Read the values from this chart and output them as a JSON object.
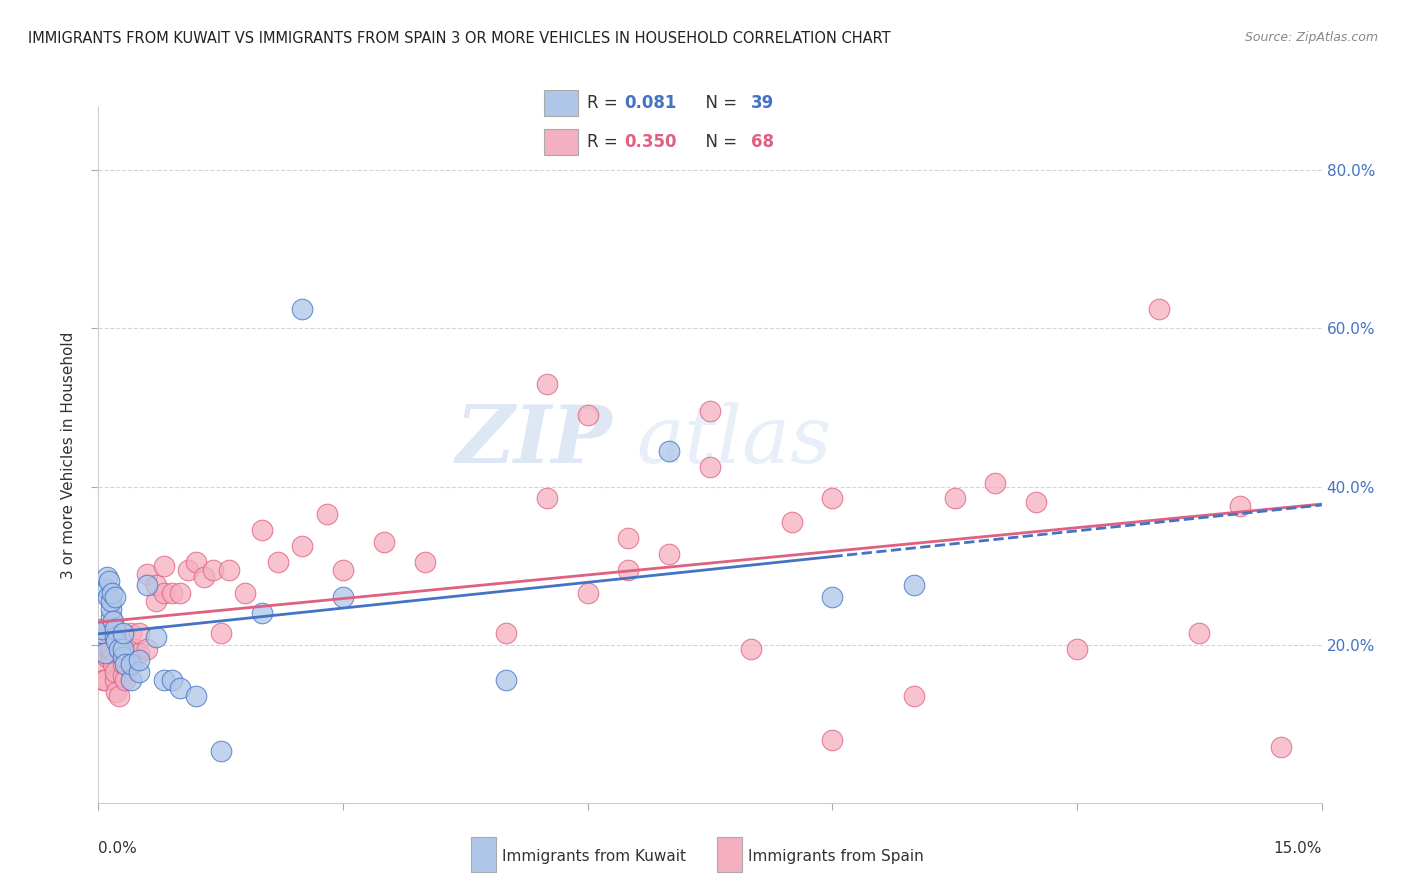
{
  "title": "IMMIGRANTS FROM KUWAIT VS IMMIGRANTS FROM SPAIN 3 OR MORE VEHICLES IN HOUSEHOLD CORRELATION CHART",
  "source": "Source: ZipAtlas.com",
  "ylabel": "3 or more Vehicles in Household",
  "right_yticks": [
    0.2,
    0.4,
    0.6,
    0.8
  ],
  "right_yticklabels": [
    "20.0%",
    "40.0%",
    "60.0%",
    "80.0%"
  ],
  "xlim": [
    0.0,
    0.15
  ],
  "ylim": [
    0.0,
    0.88
  ],
  "kuwait_R": 0.081,
  "kuwait_N": 39,
  "spain_R": 0.35,
  "spain_N": 68,
  "kuwait_color": "#aec6e8",
  "spain_color": "#f4afc0",
  "kuwait_line_color": "#4472c4",
  "spain_line_color": "#e06080",
  "legend_label_kuwait": "Immigrants from Kuwait",
  "legend_label_spain": "Immigrants from Spain",
  "watermark_zip": "ZIP",
  "watermark_atlas": "atlas",
  "kuwait_x": [
    0.0005,
    0.0005,
    0.0008,
    0.001,
    0.001,
    0.0012,
    0.0013,
    0.0015,
    0.0015,
    0.0016,
    0.0017,
    0.0018,
    0.002,
    0.002,
    0.002,
    0.0022,
    0.0025,
    0.003,
    0.003,
    0.003,
    0.0032,
    0.004,
    0.004,
    0.005,
    0.005,
    0.006,
    0.007,
    0.008,
    0.009,
    0.01,
    0.012,
    0.015,
    0.02,
    0.025,
    0.03,
    0.05,
    0.07,
    0.09,
    0.1
  ],
  "kuwait_y": [
    0.215,
    0.22,
    0.19,
    0.27,
    0.285,
    0.26,
    0.28,
    0.235,
    0.245,
    0.255,
    0.265,
    0.23,
    0.21,
    0.22,
    0.26,
    0.205,
    0.195,
    0.185,
    0.195,
    0.215,
    0.175,
    0.155,
    0.175,
    0.165,
    0.18,
    0.275,
    0.21,
    0.155,
    0.155,
    0.145,
    0.135,
    0.065,
    0.24,
    0.625,
    0.26,
    0.155,
    0.445,
    0.26,
    0.275
  ],
  "spain_x": [
    0.0005,
    0.0006,
    0.0008,
    0.001,
    0.001,
    0.0012,
    0.0013,
    0.0015,
    0.0016,
    0.0018,
    0.002,
    0.002,
    0.0022,
    0.0025,
    0.003,
    0.003,
    0.003,
    0.0032,
    0.004,
    0.004,
    0.0045,
    0.005,
    0.005,
    0.006,
    0.006,
    0.007,
    0.007,
    0.008,
    0.008,
    0.009,
    0.01,
    0.011,
    0.012,
    0.013,
    0.014,
    0.015,
    0.016,
    0.018,
    0.02,
    0.022,
    0.025,
    0.028,
    0.03,
    0.035,
    0.04,
    0.05,
    0.055,
    0.06,
    0.065,
    0.07,
    0.075,
    0.08,
    0.085,
    0.09,
    0.1,
    0.105,
    0.11,
    0.12,
    0.13,
    0.135,
    0.14,
    0.145,
    0.115,
    0.09,
    0.065,
    0.075,
    0.06,
    0.055
  ],
  "spain_y": [
    0.17,
    0.155,
    0.155,
    0.185,
    0.21,
    0.195,
    0.215,
    0.185,
    0.195,
    0.175,
    0.155,
    0.165,
    0.14,
    0.135,
    0.16,
    0.175,
    0.195,
    0.155,
    0.195,
    0.215,
    0.195,
    0.19,
    0.215,
    0.195,
    0.29,
    0.255,
    0.275,
    0.265,
    0.3,
    0.265,
    0.265,
    0.295,
    0.305,
    0.285,
    0.295,
    0.215,
    0.295,
    0.265,
    0.345,
    0.305,
    0.325,
    0.365,
    0.295,
    0.33,
    0.305,
    0.215,
    0.385,
    0.265,
    0.335,
    0.315,
    0.425,
    0.195,
    0.355,
    0.385,
    0.135,
    0.385,
    0.405,
    0.195,
    0.625,
    0.215,
    0.375,
    0.07,
    0.38,
    0.08,
    0.295,
    0.495,
    0.49,
    0.53
  ]
}
